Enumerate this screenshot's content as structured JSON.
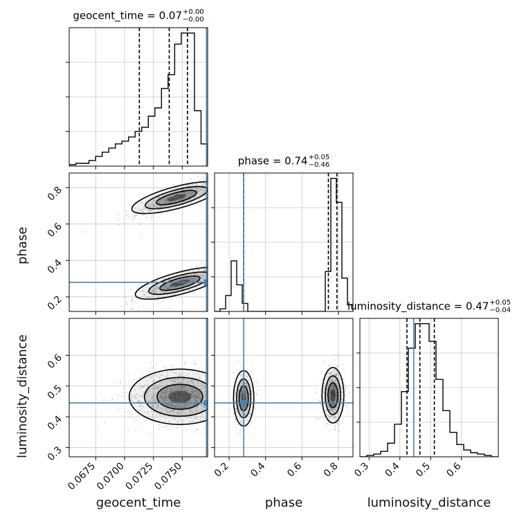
{
  "chart_data": {
    "type": "corner",
    "parameters": [
      "geocent_time",
      "phase",
      "luminosity_distance"
    ],
    "truth": {
      "geocent_time": 0.0771,
      "phase": 0.28,
      "luminosity_distance": 0.445
    },
    "colors": {
      "truth": "#4682b4",
      "hist": "#000000",
      "grid": "#c8c8c8",
      "scatter": "#555555"
    },
    "titles": [
      {
        "name": "geocent_time",
        "value": "0.07",
        "plus": "+0.00",
        "minus": "−0.00"
      },
      {
        "name": "phase",
        "value": "0.74",
        "plus": "+0.05",
        "minus": "−0.46"
      },
      {
        "name": "luminosity_distance",
        "value": "0.47",
        "plus": "+0.05",
        "minus": "−0.04"
      }
    ],
    "axes": {
      "geocent_time": {
        "range": [
          0.0652,
          0.0772
        ],
        "ticks": [
          "0.0675",
          "0.0700",
          "0.0725",
          "0.0750"
        ],
        "tick_values": [
          0.0675,
          0.07,
          0.0725,
          0.075
        ]
      },
      "phase": {
        "range": [
          0.12,
          0.88
        ],
        "ticks": [
          "0.2",
          "0.4",
          "0.6",
          "0.8"
        ],
        "tick_values": [
          0.2,
          0.4,
          0.6,
          0.8
        ]
      },
      "luminosity_distance": {
        "range": [
          0.27,
          0.72
        ],
        "ticks": [
          "0.3",
          "0.4",
          "0.5",
          "0.6"
        ],
        "tick_values": [
          0.3,
          0.4,
          0.5,
          0.6
        ]
      }
    },
    "histograms": {
      "geocent_time": {
        "counts": [
          1,
          2,
          2,
          4,
          7,
          10,
          13,
          16,
          18,
          21,
          25,
          28,
          36,
          42,
          56,
          66,
          88,
          96,
          96,
          40,
          16
        ],
        "quantiles": [
          0.07128,
          0.07387,
          0.07545
        ]
      },
      "phase": {
        "counts": [
          0,
          2,
          12,
          38,
          20,
          6,
          0,
          0,
          0,
          0,
          0,
          0,
          0,
          0,
          0,
          0,
          0,
          0,
          0,
          0,
          30,
          100,
          82,
          25,
          5
        ],
        "quantiles": [
          0.28,
          0.745,
          0.792
        ]
      },
      "luminosity_distance": {
        "counts": [
          0,
          1,
          2,
          4,
          10,
          24,
          48,
          80,
          98,
          98,
          85,
          57,
          34,
          18,
          9,
          5,
          3,
          2,
          1,
          0
        ],
        "quantiles": [
          0.423,
          0.465,
          0.512
        ]
      }
    },
    "grid": true
  }
}
